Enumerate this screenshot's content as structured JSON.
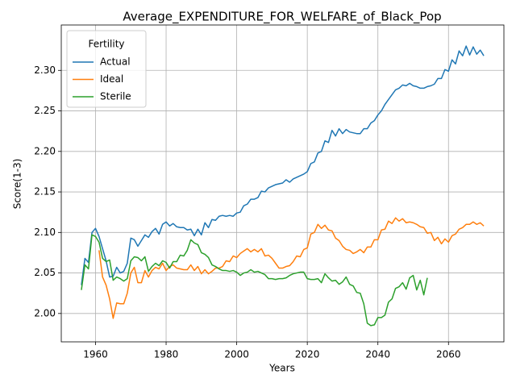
{
  "chart_data": {
    "type": "line",
    "title": "Average_EXPENDITURE_FOR_WELFARE_of_Black_Pop",
    "x_label": "Years",
    "y_label": "Score(1-3)",
    "x": [
      1956,
      1957,
      1958,
      1959,
      1960,
      1961,
      1962,
      1963,
      1964,
      1965,
      1966,
      1967,
      1968,
      1969,
      1970,
      1971,
      1972,
      1973,
      1974,
      1975,
      1976,
      1977,
      1978,
      1979,
      1980,
      1981,
      1982,
      1983,
      1984,
      1985,
      1986,
      1987,
      1988,
      1989,
      1990,
      1991,
      1992,
      1993,
      1994,
      1995,
      1996,
      1997,
      1998,
      1999,
      2000,
      2001,
      2002,
      2003,
      2004,
      2005,
      2006,
      2007,
      2008,
      2009,
      2010,
      2011,
      2012,
      2013,
      2014,
      2015,
      2016,
      2017,
      2018,
      2019,
      2020,
      2021,
      2022,
      2023,
      2024,
      2025,
      2026,
      2027,
      2028,
      2029,
      2030,
      2031,
      2032,
      2033,
      2034,
      2035,
      2036,
      2037,
      2038,
      2039,
      2040,
      2041,
      2042,
      2043,
      2044,
      2045,
      2046,
      2047,
      2048,
      2049,
      2050,
      2051,
      2052,
      2053,
      2054,
      2055,
      2056,
      2057,
      2058,
      2059,
      2060,
      2061,
      2062,
      2063,
      2064,
      2065,
      2066,
      2067,
      2068,
      2069,
      2070
    ],
    "series": [
      {
        "name": "Actual",
        "color": "#1f77b4",
        "values": [
          2.035,
          2.068,
          2.063,
          2.1,
          2.105,
          2.095,
          2.08,
          2.065,
          2.045,
          2.046,
          2.057,
          2.05,
          2.052,
          2.062,
          2.093,
          2.091,
          2.083,
          2.09,
          2.097,
          2.094,
          2.101,
          2.105,
          2.098,
          2.11,
          2.113,
          2.108,
          2.111,
          2.107,
          2.106,
          2.106,
          2.103,
          2.104,
          2.096,
          2.104,
          2.097,
          2.112,
          2.106,
          2.116,
          2.115,
          2.12,
          2.121,
          2.12,
          2.121,
          2.12,
          2.124,
          2.125,
          2.133,
          2.135,
          2.141,
          2.141,
          2.143,
          2.151,
          2.15,
          2.155,
          2.157,
          2.159,
          2.16,
          2.161,
          2.165,
          2.162,
          2.166,
          2.168,
          2.17,
          2.172,
          2.175,
          2.185,
          2.187,
          2.198,
          2.2,
          2.213,
          2.211,
          2.226,
          2.219,
          2.228,
          2.222,
          2.227,
          2.224,
          2.223,
          2.222,
          2.222,
          2.228,
          2.228,
          2.235,
          2.238,
          2.245,
          2.25,
          2.258,
          2.264,
          2.27,
          2.276,
          2.278,
          2.282,
          2.281,
          2.284,
          2.281,
          2.28,
          2.278,
          2.278,
          2.28,
          2.281,
          2.283,
          2.29,
          2.29,
          2.301,
          2.299,
          2.313,
          2.308,
          2.324,
          2.318,
          2.33,
          2.319,
          2.329,
          2.32,
          2.325,
          2.318
        ]
      },
      {
        "name": "Ideal",
        "color": "#ff7f0e",
        "values": [
          null,
          null,
          null,
          null,
          null,
          2.078,
          2.045,
          2.035,
          2.018,
          1.994,
          2.013,
          2.012,
          2.012,
          2.025,
          2.05,
          2.057,
          2.038,
          2.038,
          2.053,
          2.045,
          2.053,
          2.057,
          2.055,
          2.062,
          2.053,
          2.058,
          2.06,
          2.056,
          2.055,
          2.054,
          2.054,
          2.06,
          2.053,
          2.058,
          2.049,
          2.054,
          2.049,
          2.052,
          2.056,
          2.056,
          2.058,
          2.065,
          2.064,
          2.071,
          2.069,
          2.074,
          2.077,
          2.08,
          2.076,
          2.079,
          2.076,
          2.08,
          2.071,
          2.072,
          2.068,
          2.062,
          2.056,
          2.056,
          2.058,
          2.059,
          2.064,
          2.071,
          2.07,
          2.079,
          2.081,
          2.098,
          2.1,
          2.11,
          2.105,
          2.109,
          2.103,
          2.102,
          2.093,
          2.09,
          2.083,
          2.079,
          2.078,
          2.074,
          2.076,
          2.079,
          2.075,
          2.082,
          2.082,
          2.091,
          2.091,
          2.103,
          2.104,
          2.114,
          2.111,
          2.118,
          2.114,
          2.117,
          2.112,
          2.113,
          2.112,
          2.11,
          2.107,
          2.106,
          2.099,
          2.1,
          2.09,
          2.094,
          2.086,
          2.092,
          2.088,
          2.096,
          2.098,
          2.104,
          2.106,
          2.11,
          2.11,
          2.113,
          2.11,
          2.112,
          2.108
        ]
      },
      {
        "name": "Sterile",
        "color": "#2ca02c",
        "values": [
          2.029,
          2.06,
          2.055,
          2.097,
          2.095,
          2.088,
          2.068,
          2.064,
          2.066,
          2.041,
          2.045,
          2.043,
          2.04,
          2.043,
          2.065,
          2.07,
          2.069,
          2.065,
          2.07,
          2.052,
          2.058,
          2.062,
          2.059,
          2.065,
          2.063,
          2.056,
          2.064,
          2.064,
          2.072,
          2.071,
          2.078,
          2.091,
          2.087,
          2.085,
          2.075,
          2.073,
          2.069,
          2.06,
          2.058,
          2.055,
          2.053,
          2.053,
          2.052,
          2.053,
          2.051,
          2.047,
          2.05,
          2.051,
          2.054,
          2.051,
          2.052,
          2.05,
          2.048,
          2.043,
          2.043,
          2.042,
          2.043,
          2.043,
          2.044,
          2.047,
          2.049,
          2.05,
          2.051,
          2.051,
          2.043,
          2.042,
          2.042,
          2.043,
          2.038,
          2.049,
          2.044,
          2.04,
          2.041,
          2.036,
          2.039,
          2.045,
          2.036,
          2.034,
          2.026,
          2.025,
          2.012,
          1.988,
          1.985,
          1.986,
          1.995,
          1.995,
          1.998,
          2.014,
          2.018,
          2.031,
          2.033,
          2.038,
          2.03,
          2.044,
          2.047,
          2.029,
          2.041,
          2.023,
          2.044,
          null,
          null,
          null,
          null,
          null,
          null,
          null,
          null,
          null,
          null,
          null,
          null,
          null,
          null,
          null,
          null
        ]
      }
    ],
    "xlim": [
      1950.3,
      2075.7
    ],
    "ylim": [
      1.965,
      2.356
    ],
    "xticks": [
      1960,
      1980,
      2000,
      2020,
      2040,
      2060
    ],
    "yticks": [
      {
        "value": 2.0,
        "label": "2.00"
      },
      2.05,
      {
        "value": 2.1,
        "label": "2.10"
      },
      2.15,
      {
        "value": 2.2,
        "label": "2.20"
      },
      2.25,
      {
        "value": 2.3,
        "label": "2.30"
      }
    ],
    "grid": true,
    "legend": {
      "title": "Fertility",
      "corner": "upper left"
    }
  }
}
